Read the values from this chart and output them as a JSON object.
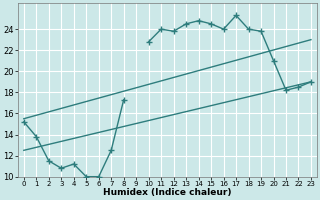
{
  "xlabel": "Humidex (Indice chaleur)",
  "background_color": "#cce8e8",
  "grid_color": "#ffffff",
  "line_color": "#2e7d7d",
  "x_min": 0,
  "x_max": 23,
  "y_min": 10,
  "y_max": 26,
  "yticks": [
    10,
    12,
    14,
    16,
    18,
    20,
    22,
    24
  ],
  "xticks": [
    0,
    1,
    2,
    3,
    4,
    5,
    6,
    7,
    8,
    9,
    10,
    11,
    12,
    13,
    14,
    15,
    16,
    17,
    18,
    19,
    20,
    21,
    22,
    23
  ],
  "jagged1_x": [
    0,
    1,
    2,
    3,
    4,
    5,
    6,
    7,
    8
  ],
  "jagged1_y": [
    15.2,
    13.8,
    11.5,
    10.8,
    11.2,
    10.0,
    10.0,
    12.5,
    17.3
  ],
  "jagged2_x": [
    10,
    11,
    12,
    13,
    14,
    15,
    16,
    17,
    18,
    19,
    20,
    21,
    22,
    23
  ],
  "jagged2_y": [
    22.8,
    24.0,
    23.8,
    24.5,
    24.8,
    24.5,
    24.0,
    25.3,
    24.0,
    23.8,
    21.0,
    18.2,
    18.5,
    19.0
  ],
  "line1_x": [
    0,
    23
  ],
  "line1_y": [
    15.5,
    23.0
  ],
  "line2_x": [
    0,
    23
  ],
  "line2_y": [
    12.5,
    19.0
  ],
  "marker_size": 4,
  "line_width": 1.0
}
